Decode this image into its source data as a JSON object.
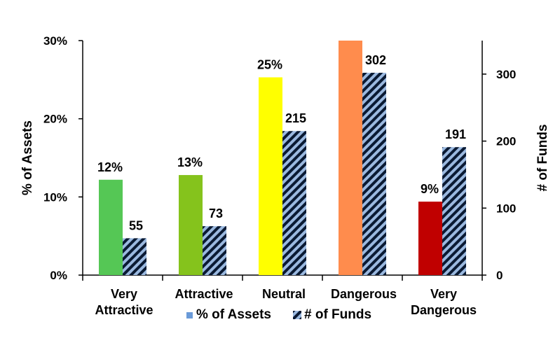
{
  "chart_data": {
    "type": "bar",
    "categories": [
      [
        "Very",
        "Attractive"
      ],
      [
        "Attractive"
      ],
      [
        "Neutral"
      ],
      [
        "Dangerous"
      ],
      [
        "Very",
        "Dangerous"
      ]
    ],
    "series": [
      {
        "name": "% of Assets",
        "axis": "left",
        "values": [
          12.2,
          12.8,
          25.3,
          30.0,
          9.4
        ],
        "labels": [
          "12%",
          "13%",
          "25%",
          "",
          "9%"
        ],
        "colors": [
          "#55c755",
          "#85c31c",
          "#ffff00",
          "#ff8c4d",
          "#c00000"
        ]
      },
      {
        "name": "# of Funds",
        "axis": "right",
        "values": [
          55,
          73,
          215,
          302,
          191
        ],
        "labels": [
          "55",
          "73",
          "215",
          "302",
          "191"
        ],
        "pattern": "hatched",
        "pattern_colors": [
          "#0a1a33",
          "#9bb9e0"
        ]
      }
    ],
    "ylabel": "% of Assets",
    "y2label": "# of Funds",
    "ylim": [
      0,
      30
    ],
    "y2lim": [
      0,
      350
    ],
    "yticks": [
      "0%",
      "10%",
      "20%",
      "30%"
    ],
    "yticks_values": [
      0,
      10,
      20,
      30
    ],
    "y2ticks": [
      "0",
      "100",
      "200",
      "300"
    ],
    "y2ticks_values": [
      0,
      100,
      200,
      300
    ],
    "legend": {
      "position": "bottom",
      "items": [
        "% of Assets",
        "# of Funds"
      ],
      "swatch_colors": [
        "#6a9ad8",
        "#0a1a33"
      ]
    },
    "grid": false
  }
}
